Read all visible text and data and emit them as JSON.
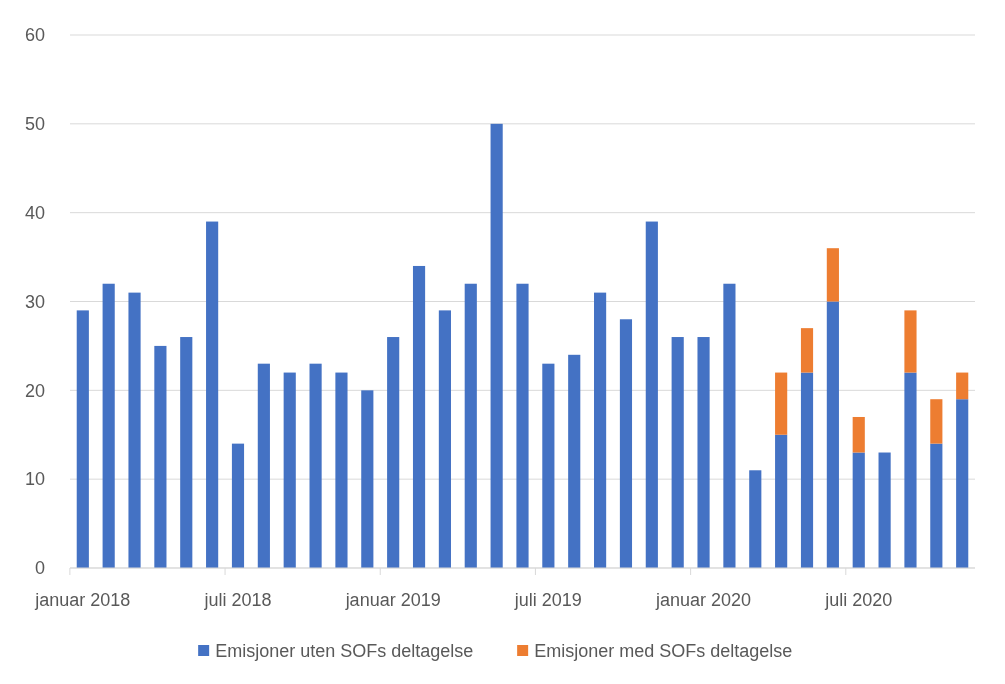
{
  "chart_data": {
    "type": "bar",
    "stacked": true,
    "categories": [
      "januar 2018",
      null,
      null,
      null,
      null,
      null,
      "juli 2018",
      null,
      null,
      null,
      null,
      null,
      "januar 2019",
      null,
      null,
      null,
      null,
      null,
      "juli 2019",
      null,
      null,
      null,
      null,
      null,
      "januar 2020",
      null,
      null,
      null,
      null,
      null,
      "juli 2020",
      null,
      null,
      null,
      null
    ],
    "series": [
      {
        "name": "Emisjoner uten SOFs deltagelse",
        "color": "#4472c4",
        "values": [
          29,
          32,
          31,
          25,
          26,
          39,
          14,
          23,
          22,
          23,
          22,
          20,
          26,
          34,
          29,
          32,
          50,
          32,
          23,
          24,
          31,
          28,
          39,
          26,
          26,
          32,
          11,
          15,
          22,
          30,
          13,
          13,
          22,
          14,
          19
        ]
      },
      {
        "name": "Emisjoner med SOFs deltagelse",
        "color": "#ed7d31",
        "values": [
          0,
          0,
          0,
          0,
          0,
          0,
          0,
          0,
          0,
          0,
          0,
          0,
          0,
          0,
          0,
          0,
          0,
          0,
          0,
          0,
          0,
          0,
          0,
          0,
          0,
          0,
          0,
          7,
          5,
          6,
          4,
          0,
          7,
          5,
          3
        ]
      }
    ],
    "ylim": [
      0,
      60
    ],
    "yticks": [
      0,
      10,
      20,
      30,
      40,
      50,
      60
    ],
    "grid": "y",
    "legend": "bottom"
  }
}
